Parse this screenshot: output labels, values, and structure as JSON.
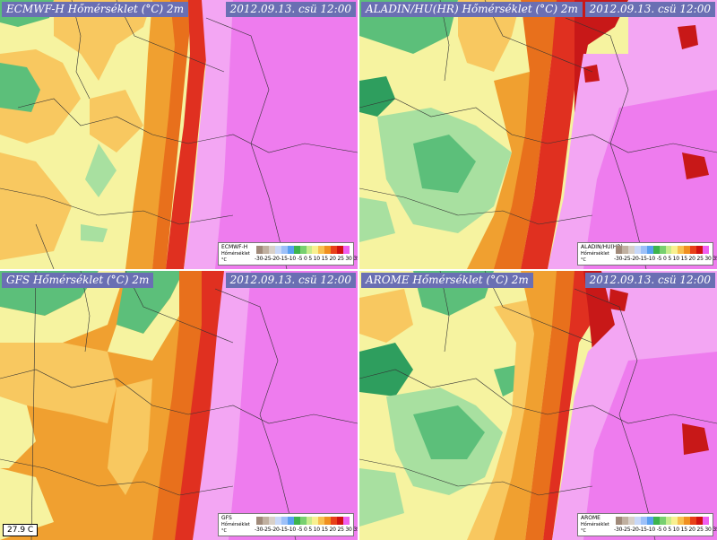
{
  "panels": [
    {
      "title_left": "ECMWF-H Hőmérséklet (°C) 2m",
      "title_right": "2012.09.13. csü 12:00",
      "legend_name": "ECMWF-H",
      "legend_sub": "Hőmérséklet",
      "legend_unit": "°C"
    },
    {
      "title_left": "ALADIN/HU(HR) Hőmérséklet (°C) 2m",
      "title_right": "2012.09.13. csü 12:00",
      "legend_name": "ALADIN/HU(HR)",
      "legend_sub": "Hőmérséklet",
      "legend_unit": "°C"
    },
    {
      "title_left": "GFS Hőmérséklet (°C) 2m",
      "title_right": "2012.09.13. csü 12:00",
      "legend_name": "GFS",
      "legend_sub": "Hőmérséklet",
      "legend_unit": "°C",
      "readout": "27.9 C"
    },
    {
      "title_left": "AROME Hőmérséklet (°C) 2m",
      "title_right": "2012.09.13. csü 12:00",
      "legend_name": "AROME",
      "legend_sub": "Hőmérséklet",
      "legend_unit": "°C"
    }
  ],
  "legend_ticks": "-30-25-20-15-10 -5  0  5 10 15 20 25 30 35 40",
  "colors": {
    "green_dark": "#2e9e5e",
    "green": "#5cbf7a",
    "green_light": "#a8e0a0",
    "yellow": "#f6f3a0",
    "orange_light": "#f8c860",
    "orange": "#f0a030",
    "orange_dark": "#e8701c",
    "red": "#e03020",
    "red_dark": "#c81818",
    "magenta_light": "#f3a6f3",
    "magenta": "#ee7cee",
    "title_bg": "#6a6fb3"
  },
  "legend_colors": [
    "#a08a7a",
    "#c0b0a0",
    "#d8d0c8",
    "#c8d8f8",
    "#9cc0f8",
    "#58a0f0",
    "#3cb44c",
    "#78d070",
    "#c8ec8c",
    "#f8f090",
    "#f8c050",
    "#f09020",
    "#e84018",
    "#d01010",
    "#f060f0"
  ]
}
